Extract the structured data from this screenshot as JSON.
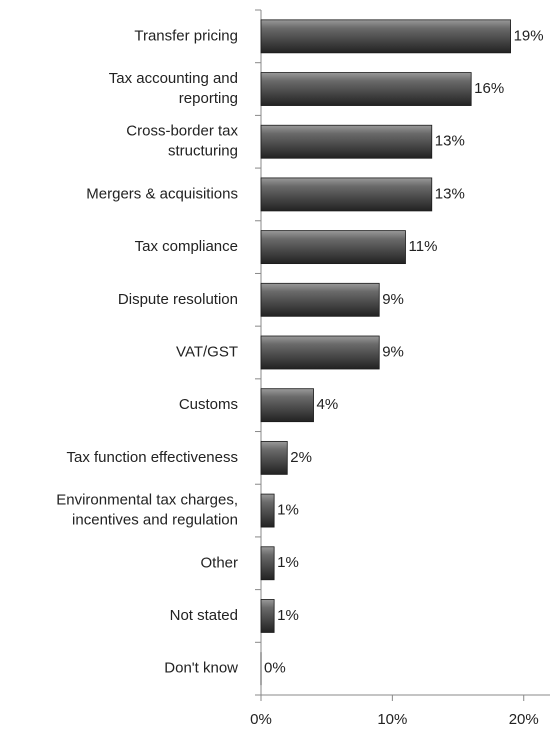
{
  "chart_data": {
    "type": "bar",
    "orientation": "horizontal",
    "categories": [
      "Transfer pricing",
      "Tax accounting and reporting",
      "Cross-border tax structuring",
      "Mergers & acquisitions",
      "Tax compliance",
      "Dispute resolution",
      "VAT/GST",
      "Customs",
      "Tax function effectiveness",
      "Environmental tax charges, incentives and regulation",
      "Other",
      "Not stated",
      "Don't know"
    ],
    "values": [
      19,
      16,
      13,
      13,
      11,
      9,
      9,
      4,
      2,
      1,
      1,
      1,
      0
    ],
    "value_labels": [
      "19%",
      "16%",
      "13%",
      "13%",
      "11%",
      "9%",
      "9%",
      "4%",
      "2%",
      "1%",
      "1%",
      "1%",
      "0%"
    ],
    "color": "#4d4d4d",
    "xlim": [
      0,
      22
    ],
    "xticks": [
      {
        "value": 0,
        "label": "0%"
      },
      {
        "value": 10,
        "label": "10%"
      },
      {
        "value": 20,
        "label": "20%"
      }
    ],
    "grid": false
  }
}
